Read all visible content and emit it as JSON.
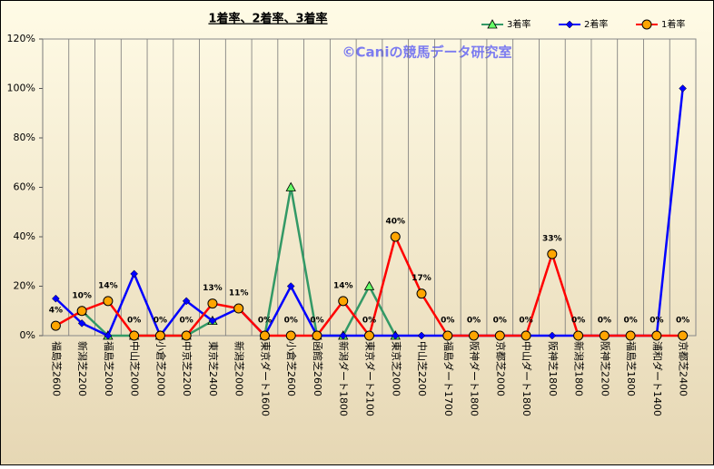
{
  "chart_data": {
    "type": "line",
    "title": "1着率、2着率、3着率",
    "annotation": "©Caniの競馬データ研究室",
    "categories": [
      "福島芝2600",
      "新潟芝2200",
      "福島芝2000",
      "中山芝2000",
      "小倉芝2000",
      "中京芝2200",
      "東京芝2400",
      "新潟芝2000",
      "東京ダート1600",
      "小倉芝2600",
      "函館芝2600",
      "新潟ダート1800",
      "東京ダート2100",
      "東京芝2000",
      "中山芝2200",
      "福島ダート1700",
      "阪神ダート1800",
      "京都芝2000",
      "中山ダート1800",
      "阪神芝1800",
      "新潟芝1800",
      "阪神芝2200",
      "福島芝1800",
      "浦和ダート1400",
      "京都芝2400"
    ],
    "series": [
      {
        "name": "3着率",
        "color": "#339966",
        "marker": "triangle",
        "values": [
          null,
          10,
          0,
          0,
          0,
          0,
          6,
          null,
          0,
          60,
          0,
          0,
          20,
          0,
          null,
          null,
          null,
          null,
          null,
          null,
          null,
          null,
          null,
          null,
          null
        ]
      },
      {
        "name": "2着率",
        "color": "#0000ff",
        "marker": "diamond",
        "values": [
          15,
          5,
          0,
          25,
          0,
          14,
          6,
          11,
          0,
          20,
          0,
          0,
          0,
          0,
          0,
          0,
          0,
          0,
          0,
          0,
          0,
          0,
          0,
          0,
          100
        ]
      },
      {
        "name": "1着率",
        "color": "#ff0000",
        "marker": "circle",
        "values": [
          4,
          10,
          14,
          0,
          0,
          0,
          13,
          11,
          0,
          0,
          0,
          14,
          0,
          40,
          17,
          0,
          0,
          0,
          0,
          33,
          0,
          0,
          0,
          0,
          0
        ],
        "value_labels": [
          "4%",
          "10%",
          "14%",
          "0%",
          "0%",
          "0%",
          "13%",
          "11%",
          "0%",
          "0%",
          "0%",
          "14%",
          "0%",
          "40%",
          "17%",
          "0%",
          "0%",
          "0%",
          "0%",
          "33%",
          "0%",
          "0%",
          "0%",
          "0%",
          "0%"
        ]
      }
    ],
    "ylim": [
      0,
      120
    ],
    "yticks": [
      {
        "value": 0,
        "label": "0%"
      },
      {
        "value": 20,
        "label": "20%"
      },
      {
        "value": 40,
        "label": "40%"
      },
      {
        "value": 60,
        "label": "60%"
      },
      {
        "value": 80,
        "label": "80%"
      },
      {
        "value": 100,
        "label": "100%"
      },
      {
        "value": 120,
        "label": "120%"
      }
    ],
    "legend": "top-right"
  }
}
